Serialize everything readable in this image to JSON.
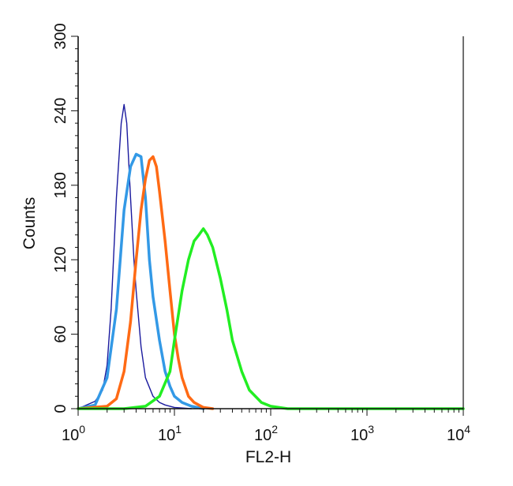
{
  "chart_data": {
    "type": "line",
    "title": "",
    "xlabel": "FL2-H",
    "ylabel": "Counts",
    "xscale": "log",
    "xlim": [
      1,
      10000
    ],
    "ylim": [
      0,
      300
    ],
    "grid": false,
    "legend": "none",
    "x_ticks": [
      {
        "value": 1,
        "base": "10",
        "exp": "0"
      },
      {
        "value": 10,
        "base": "10",
        "exp": "1"
      },
      {
        "value": 100,
        "base": "10",
        "exp": "2"
      },
      {
        "value": 1000,
        "base": "10",
        "exp": "3"
      },
      {
        "value": 10000,
        "base": "10",
        "exp": "4"
      }
    ],
    "y_ticks": [
      {
        "value": 0,
        "label": "0"
      },
      {
        "value": 60,
        "label": "60"
      },
      {
        "value": 120,
        "label": "120"
      },
      {
        "value": 180,
        "label": "180"
      },
      {
        "value": 240,
        "label": "240"
      },
      {
        "value": 300,
        "label": "300"
      }
    ],
    "series": [
      {
        "color": "#1a1a9e",
        "stroke_width": 1.4,
        "x": [
          1.0,
          1.5,
          1.8,
          2.0,
          2.2,
          2.5,
          2.8,
          3.0,
          3.2,
          3.5,
          3.8,
          4.0,
          4.5,
          5.0,
          6.0,
          7.0,
          8.0,
          10.0,
          15.0
        ],
        "y": [
          0,
          6,
          15,
          35,
          80,
          170,
          230,
          245,
          230,
          170,
          120,
          95,
          50,
          25,
          10,
          5,
          3,
          1,
          0
        ]
      },
      {
        "color": "#3399e6",
        "stroke_width": 3.5,
        "x": [
          1.0,
          1.5,
          2.0,
          2.5,
          3.0,
          3.5,
          4.0,
          4.5,
          5.0,
          5.5,
          6.0,
          7.0,
          8.0,
          9.0,
          10.0,
          12.0,
          15.0,
          20.0
        ],
        "y": [
          0,
          3,
          25,
          80,
          160,
          195,
          205,
          203,
          170,
          120,
          90,
          55,
          30,
          18,
          10,
          5,
          2,
          0
        ]
      },
      {
        "color": "#ff6a14",
        "stroke_width": 3.5,
        "x": [
          1.0,
          2.0,
          2.5,
          3.0,
          3.5,
          4.0,
          4.5,
          5.0,
          5.5,
          6.0,
          6.5,
          7.0,
          8.0,
          9.0,
          10.0,
          11.0,
          12.0,
          14.0,
          16.0,
          20.0,
          25.0
        ],
        "y": [
          0,
          2,
          8,
          30,
          70,
          120,
          160,
          185,
          200,
          203,
          195,
          175,
          135,
          95,
          60,
          40,
          25,
          10,
          5,
          1,
          0
        ]
      },
      {
        "color": "#22ee22",
        "stroke_width": 3.5,
        "x": [
          1.0,
          3.0,
          5.0,
          7.0,
          9.0,
          10.0,
          12.0,
          14.0,
          16.0,
          18.0,
          20.0,
          22.0,
          25.0,
          30.0,
          35.0,
          40.0,
          50.0,
          60.0,
          80.0,
          100.0,
          150.0,
          10000.0
        ],
        "y": [
          0,
          0,
          2,
          10,
          30,
          55,
          95,
          120,
          135,
          140,
          145,
          140,
          130,
          105,
          80,
          55,
          30,
          15,
          5,
          2,
          0,
          0
        ]
      }
    ]
  }
}
